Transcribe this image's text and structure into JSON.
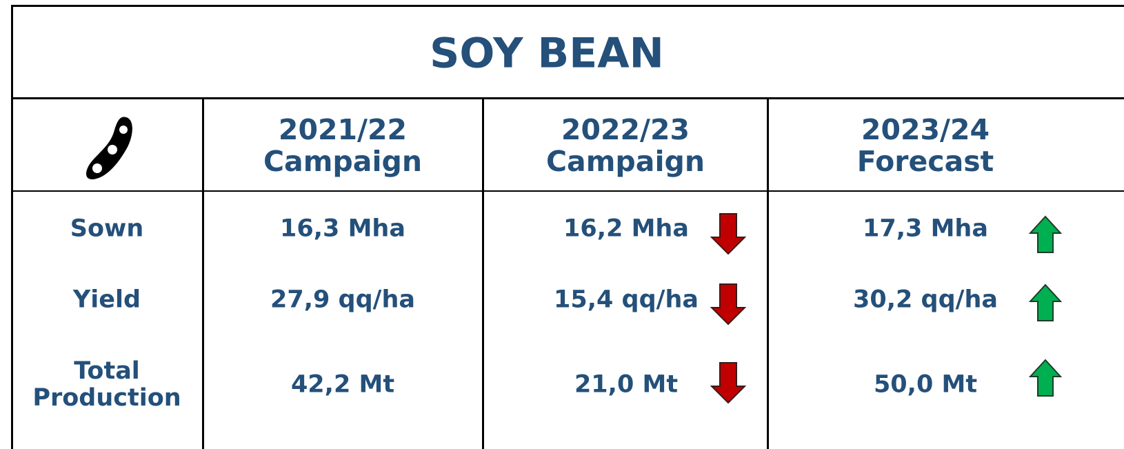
{
  "title": "SOY BEAN",
  "table": {
    "header": [
      [
        "2021/22",
        "Campaign"
      ],
      [
        "2022/23",
        "Campaign"
      ],
      [
        "2023/24",
        "Forecast"
      ]
    ],
    "rows": [
      {
        "label": [
          "Sown"
        ],
        "cells": [
          "16,3 Mha",
          "16,2 Mha",
          "17,3 Mha"
        ]
      },
      {
        "label": [
          "Yield"
        ],
        "cells": [
          "27,9 qq/ha",
          "15,4 qq/ha",
          "30,2 qq/ha"
        ]
      },
      {
        "label": [
          "Total",
          "Production"
        ],
        "cells": [
          "42,2 Mt",
          "21,0 Mt",
          "50,0 Mt"
        ]
      }
    ]
  }
}
